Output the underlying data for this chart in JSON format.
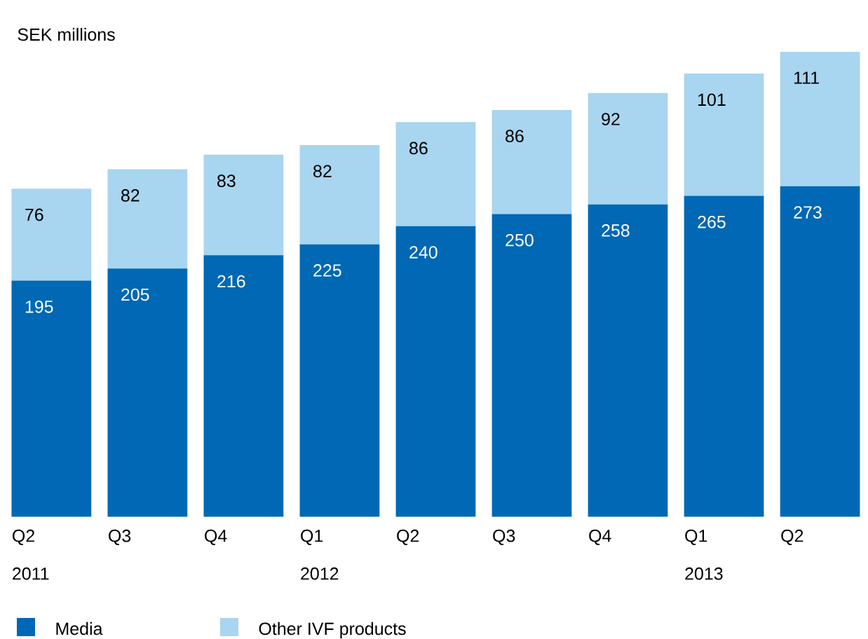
{
  "chart_data": {
    "type": "bar",
    "stacked": true,
    "title": "SEK millions",
    "categories": [
      "Q2 2011",
      "Q3",
      "Q4",
      "Q1 2012",
      "Q2",
      "Q3",
      "Q4",
      "Q1 2013",
      "Q2"
    ],
    "series": [
      {
        "name": "Media",
        "color": "#0068b4",
        "values": [
          195,
          205,
          216,
          225,
          240,
          250,
          258,
          265,
          273
        ]
      },
      {
        "name": "Other IVF products",
        "color": "#a8d5ef",
        "values": [
          76,
          82,
          83,
          82,
          86,
          86,
          92,
          101,
          111
        ]
      }
    ],
    "data_labels": true,
    "legend": "bottom"
  }
}
